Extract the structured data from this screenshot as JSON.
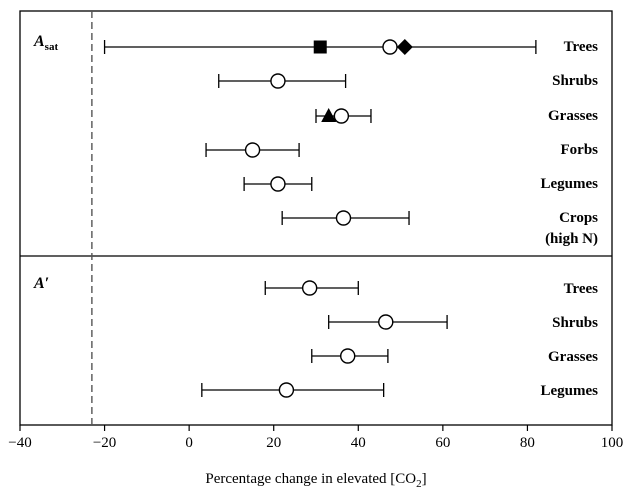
{
  "chart_data": {
    "type": "scatter",
    "xlabel": "Percentage change in elevated [CO",
    "xlabel_sub": "2",
    "xlabel_end": "]",
    "xlim": [
      -40,
      100
    ],
    "xticks": [
      -40,
      -20,
      0,
      20,
      40,
      60,
      80,
      100
    ],
    "reference_line_x": -23,
    "grid": false,
    "panels": [
      {
        "label": "A",
        "label_sub": "sat",
        "rows": [
          {
            "category": [
              "Trees"
            ],
            "mean": 47.5,
            "ci": [
              -20,
              82
            ],
            "extra_markers": [
              {
                "shape": "square",
                "x": 31
              },
              {
                "shape": "diamond",
                "x": 51
              }
            ]
          },
          {
            "category": [
              "Shrubs"
            ],
            "mean": 21,
            "ci": [
              7,
              37
            ]
          },
          {
            "category": [
              "Grasses"
            ],
            "mean": 36,
            "ci": [
              30,
              43
            ],
            "extra_markers": [
              {
                "shape": "triangle",
                "x": 33
              }
            ]
          },
          {
            "category": [
              "Forbs"
            ],
            "mean": 15,
            "ci": [
              4,
              26
            ]
          },
          {
            "category": [
              "Legumes"
            ],
            "mean": 21,
            "ci": [
              13,
              29
            ]
          },
          {
            "category": [
              "Crops",
              "(high N)"
            ],
            "mean": 36.5,
            "ci": [
              22,
              52
            ]
          }
        ]
      },
      {
        "label": "A′",
        "label_sub": "",
        "rows": [
          {
            "category": [
              "Trees"
            ],
            "mean": 28.5,
            "ci": [
              18,
              40
            ]
          },
          {
            "category": [
              "Shrubs"
            ],
            "mean": 46.5,
            "ci": [
              33,
              61
            ]
          },
          {
            "category": [
              "Grasses"
            ],
            "mean": 37.5,
            "ci": [
              29,
              47
            ]
          },
          {
            "category": [
              "Legumes"
            ],
            "mean": 23,
            "ci": [
              3,
              46
            ]
          }
        ]
      }
    ]
  }
}
